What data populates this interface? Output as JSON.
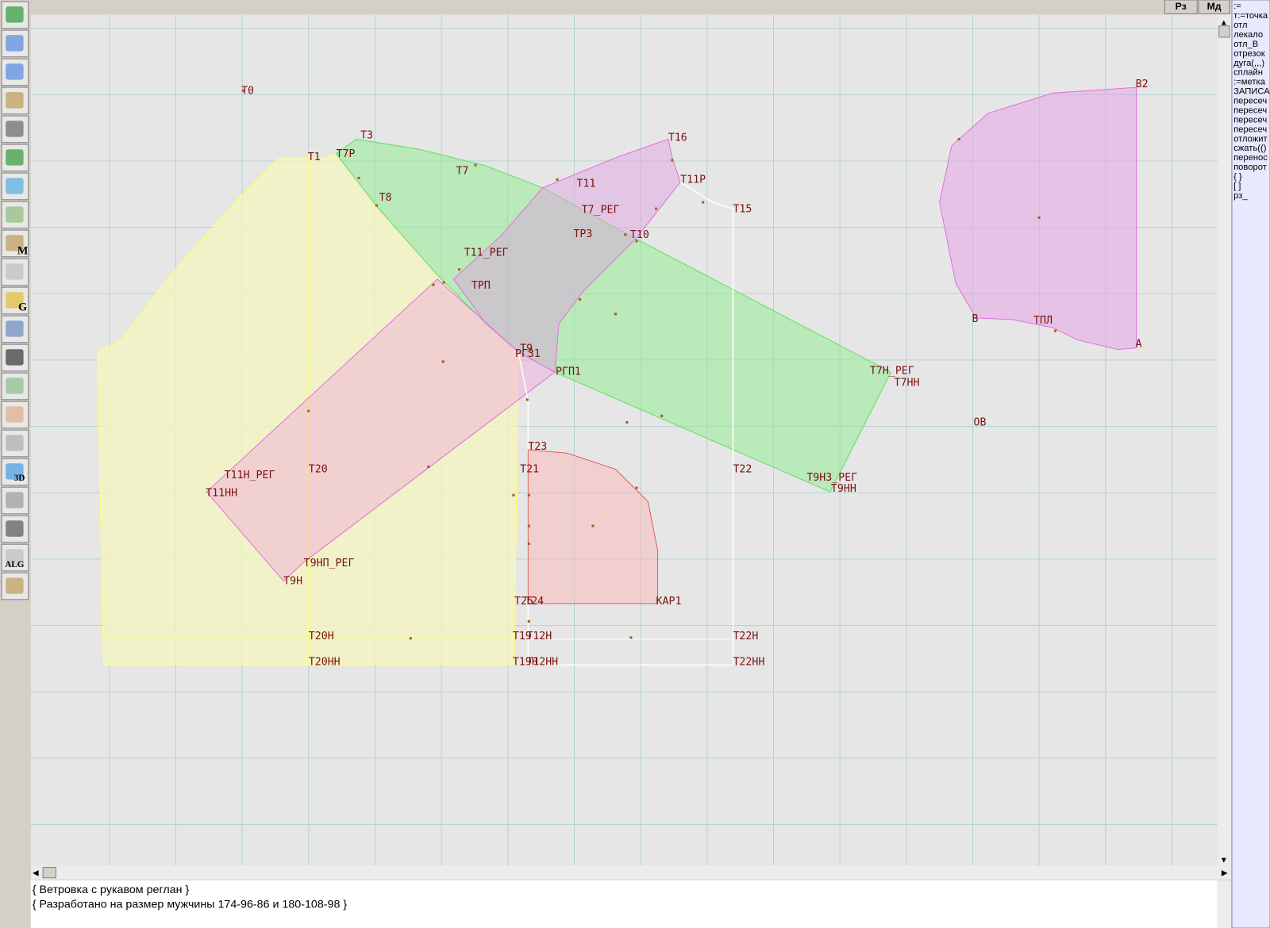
{
  "toolbar": {
    "icon_labels": [
      "M",
      "G",
      "3D",
      "ALG"
    ]
  },
  "top_buttons": [
    "Рз",
    "Мд"
  ],
  "canvas": {
    "point_labels": [
      "Т0",
      "Т3",
      "Т1",
      "Т7Р",
      "Т7",
      "Т8",
      "Т16",
      "Т11Р",
      "Т11",
      "Т7_РЕГ",
      "Т15",
      "ТР3",
      "Т10",
      "Т11_РЕГ",
      "ТРП",
      "Т9",
      "РГ31",
      "РГП1",
      "Т7Н_РЕГ",
      "Т7НН",
      "Т23",
      "Т11Н_РЕГ",
      "Т20",
      "Т21",
      "Т22",
      "Т9Н3_РЕГ",
      "Т11НН",
      "Т9НН",
      "Т9НП_РЕГ",
      "Т9Н",
      "Т25",
      "Т24",
      "КАР1",
      "Т20Н",
      "Т19",
      "Т12Н",
      "Т22Н",
      "Т20НН",
      "Т19Н",
      "Т12НН",
      "Т22НН",
      "В2",
      "В",
      "ТПЛ",
      "А",
      "ОВ"
    ]
  },
  "command_panel": {
    "lines": [
      ":=",
      "т:=точка",
      "отл",
      "лекало",
      "отл_В",
      "отрезок",
      "дуга(,,,)",
      "сплайн",
      ":=метка",
      "ЗАПИСА",
      "пересеч",
      "пересеч",
      "пересеч",
      "пересеч",
      "отложит",
      "сжать(()",
      "перенос",
      "поворот",
      "{ }",
      "[ ]",
      "рз_"
    ]
  },
  "status": {
    "lines": [
      "{ Ветровка с рукавом реглан  }",
      "{ Разработано на размер мужчины 174-96-86 и 180-108-98 }"
    ]
  }
}
